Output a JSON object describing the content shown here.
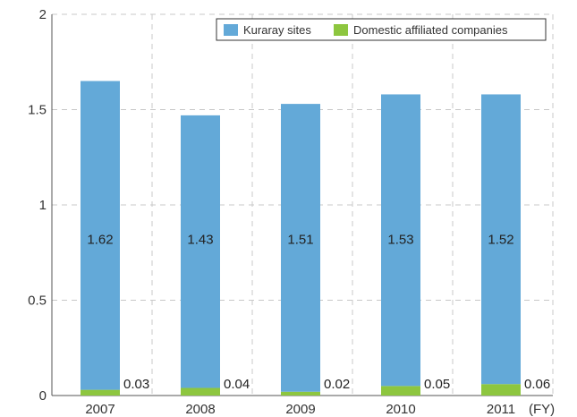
{
  "chart_data": {
    "type": "bar",
    "stacked": true,
    "categories": [
      "2007",
      "2008",
      "2009",
      "2010",
      "2011"
    ],
    "x_unit": "(FY)",
    "series": [
      {
        "name": "Domestic affiliated companies",
        "values": [
          0.03,
          0.04,
          0.02,
          0.05,
          0.06
        ],
        "color": "#8dc63f"
      },
      {
        "name": "Kuraray sites",
        "values": [
          1.62,
          1.43,
          1.51,
          1.53,
          1.52
        ],
        "color": "#63a9d8"
      }
    ],
    "bar_labels": {
      "Kuraray sites": [
        "1.62",
        "1.43",
        "1.51",
        "1.53",
        "1.52"
      ],
      "Domestic affiliated companies": [
        "0.03",
        "0.04",
        "0.02",
        "0.05",
        "0.06"
      ]
    },
    "ylim": [
      0,
      2
    ],
    "yticks": [
      "0",
      "0.5",
      "1",
      "1.5",
      "2"
    ],
    "ytick_values": [
      0,
      0.5,
      1,
      1.5,
      2
    ],
    "grid": "dashed",
    "legend": {
      "position": "top-right",
      "entries": [
        {
          "label": "Kuraray sites",
          "color": "#63a9d8"
        },
        {
          "label": "Domestic affiliated companies",
          "color": "#8dc63f"
        }
      ]
    },
    "title": "",
    "xlabel": "",
    "ylabel": ""
  }
}
